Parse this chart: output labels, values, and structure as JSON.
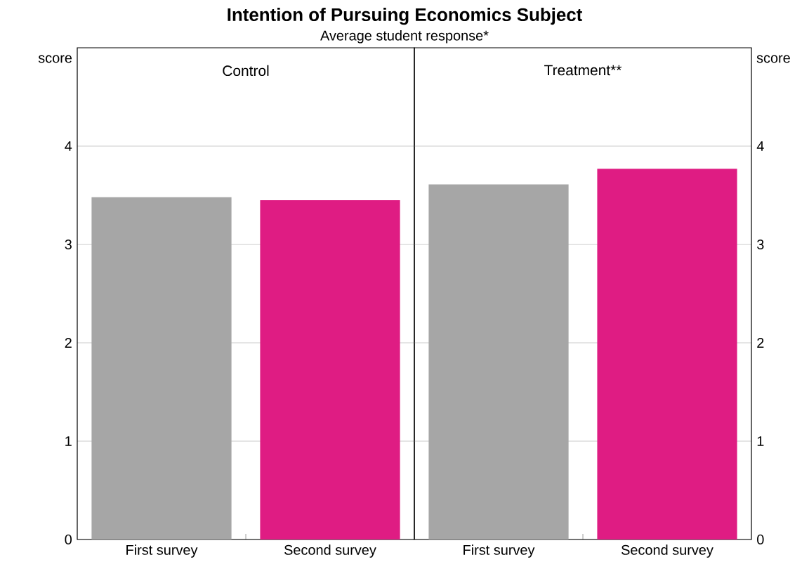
{
  "chart_data": [
    {
      "type": "bar",
      "title": "Intention of Pursuing Economics Subject",
      "subtitle": "Average student response*",
      "annotations": [
        "Control"
      ],
      "ylabel": "score",
      "categories": [
        "First survey",
        "Second survey"
      ],
      "values": [
        3.48,
        3.45
      ],
      "colors": [
        "#a6a6a6",
        "#df1c83"
      ],
      "ylim": [
        0,
        5
      ],
      "yticks": [
        0,
        1,
        2,
        3,
        4
      ],
      "grid": "y"
    },
    {
      "type": "bar",
      "annotations": [
        "Treatment**"
      ],
      "ylabel": "score",
      "categories": [
        "First survey",
        "Second survey"
      ],
      "values": [
        3.61,
        3.77
      ],
      "colors": [
        "#a6a6a6",
        "#df1c83"
      ],
      "ylim": [
        0,
        5
      ],
      "yticks": [
        0,
        1,
        2,
        3,
        4
      ],
      "grid": "y"
    }
  ]
}
